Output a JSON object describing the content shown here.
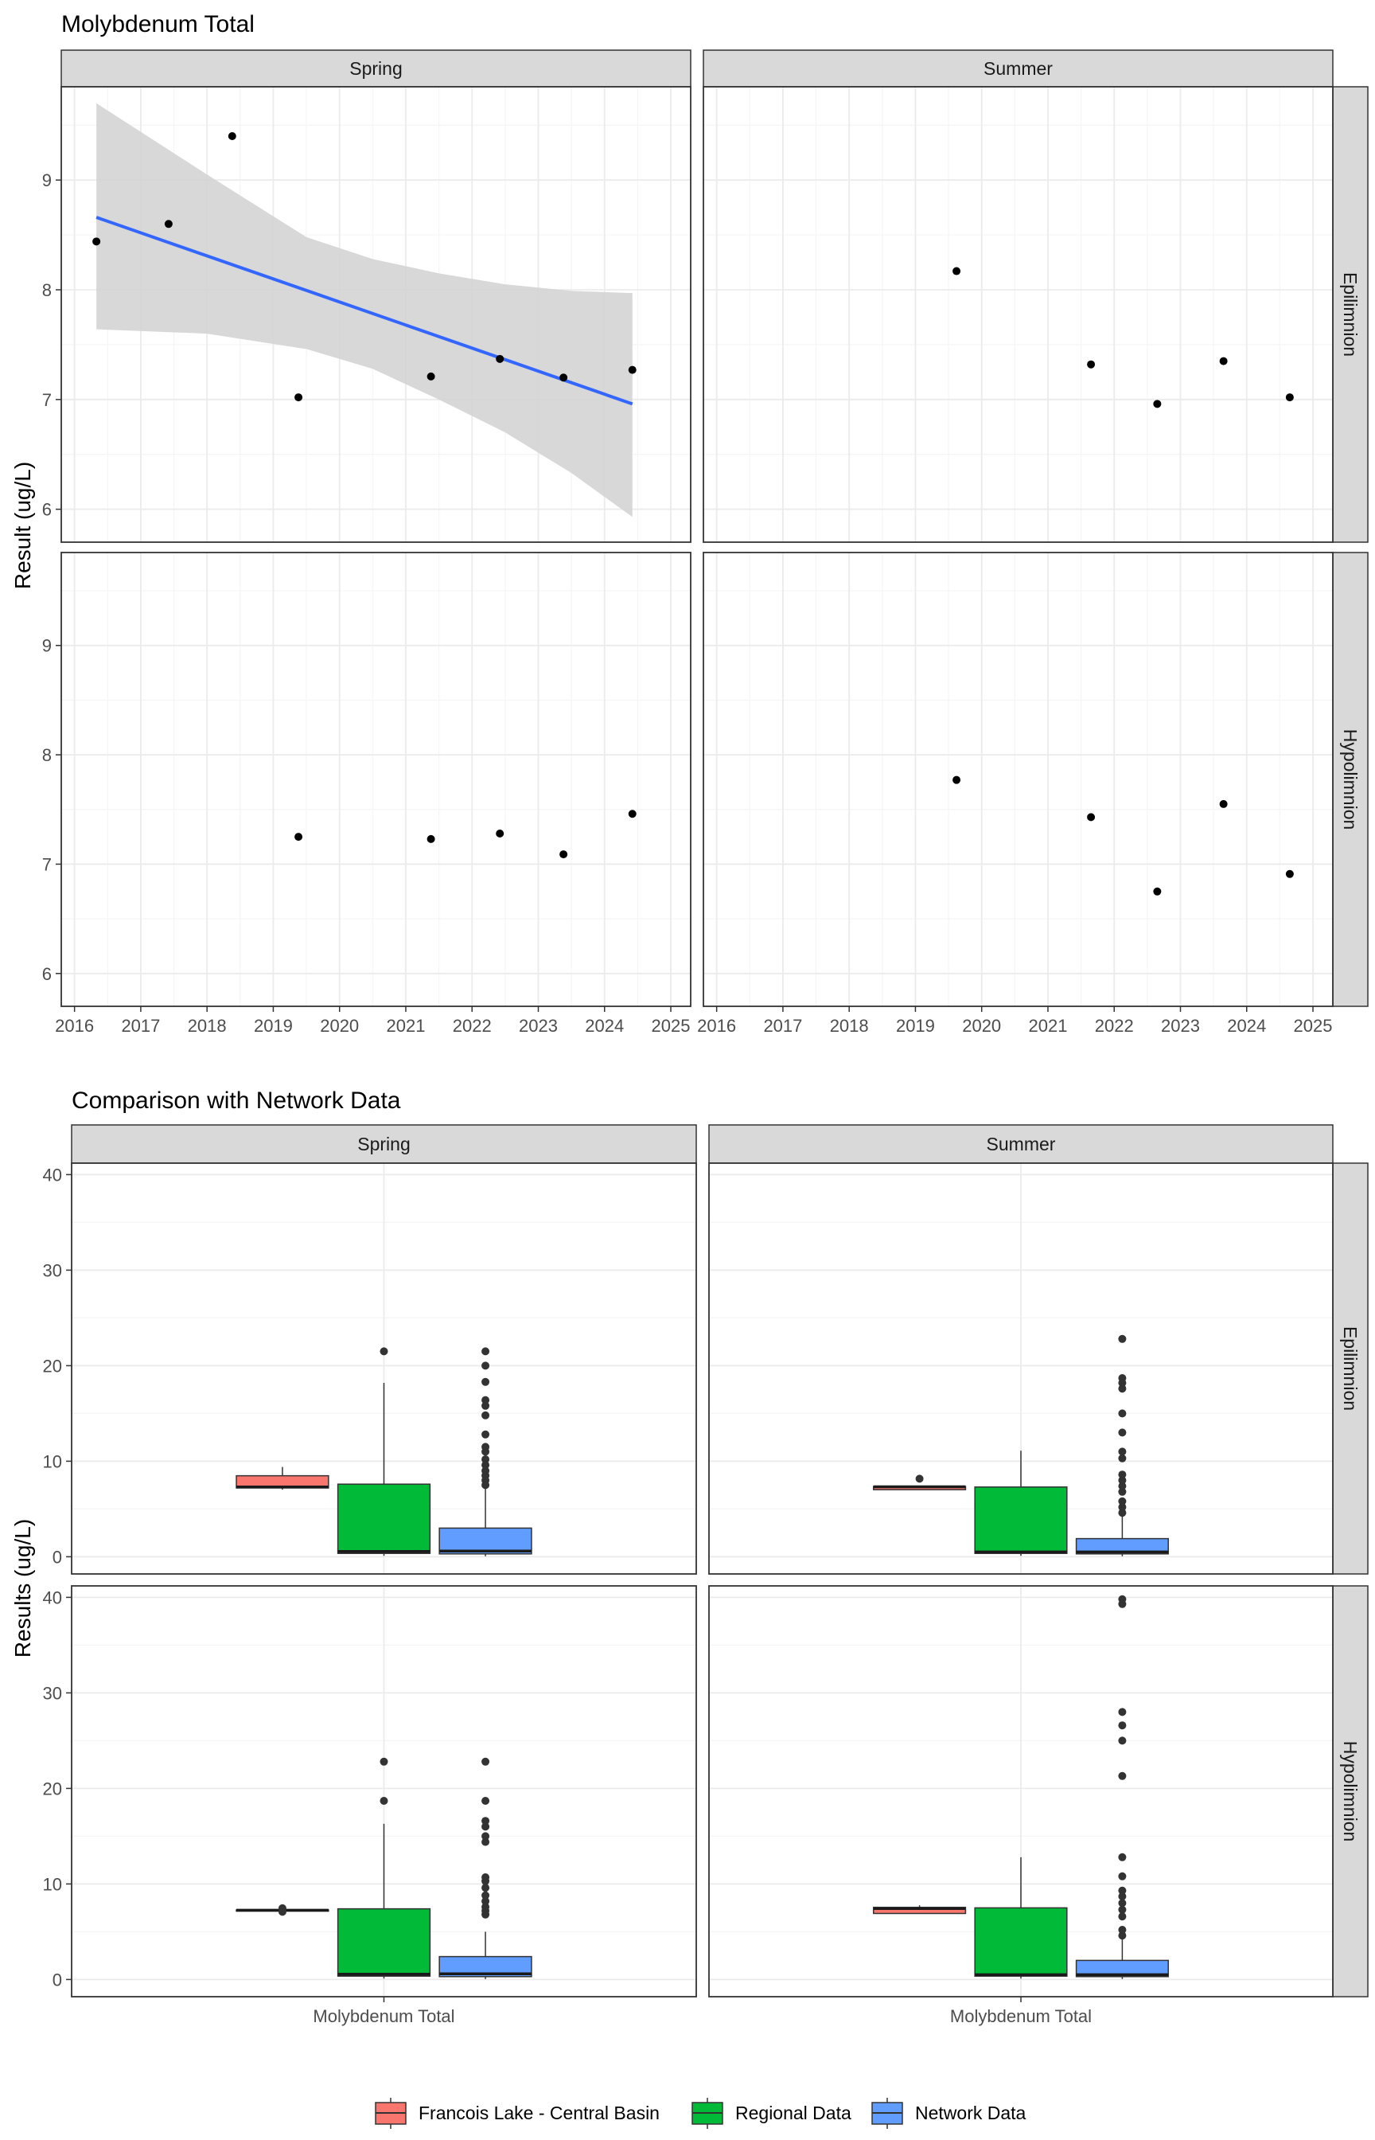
{
  "palette": {
    "panel_border": "#333333",
    "strip_fill": "#d9d9d9",
    "grid_major": "#ebebeb",
    "grid_minor": "#f5f5f5",
    "point": "#000000",
    "trend_line": "#3366ff",
    "ci_band": "#d4d4d4"
  },
  "chart_data": [
    {
      "type": "scatter",
      "title": "Molybdenum Total",
      "xlabel": "",
      "ylabel": "Result (ug/L)",
      "facet_cols": [
        "Spring",
        "Summer"
      ],
      "facet_rows": [
        "Epilimnion",
        "Hypolimnion"
      ],
      "xlim": [
        2015.8,
        2025.3
      ],
      "ylim": [
        5.7,
        9.85
      ],
      "xticks": [
        2016,
        2017,
        2018,
        2019,
        2020,
        2021,
        2022,
        2023,
        2024,
        2025
      ],
      "yticks": [
        6,
        7,
        8,
        9
      ],
      "grid": true,
      "panels": [
        {
          "col": "Spring",
          "row": "Epilimnion",
          "points": [
            {
              "x": 2016.33,
              "y": 8.44
            },
            {
              "x": 2017.42,
              "y": 8.6
            },
            {
              "x": 2018.38,
              "y": 9.4
            },
            {
              "x": 2019.38,
              "y": 7.02
            },
            {
              "x": 2021.38,
              "y": 7.21
            },
            {
              "x": 2022.42,
              "y": 7.37
            },
            {
              "x": 2023.38,
              "y": 7.2
            },
            {
              "x": 2024.42,
              "y": 7.27
            }
          ],
          "trend": {
            "x": [
              2016.33,
              2024.42
            ],
            "y": [
              8.66,
              6.96
            ],
            "ci": [
              {
                "x": 2016.33,
                "lo": 7.64,
                "hi": 9.7
              },
              {
                "x": 2018.0,
                "lo": 7.6,
                "hi": 9.05
              },
              {
                "x": 2019.5,
                "lo": 7.46,
                "hi": 8.48
              },
              {
                "x": 2020.5,
                "lo": 7.28,
                "hi": 8.28
              },
              {
                "x": 2021.5,
                "lo": 7.0,
                "hi": 8.15
              },
              {
                "x": 2022.5,
                "lo": 6.7,
                "hi": 8.05
              },
              {
                "x": 2023.5,
                "lo": 6.33,
                "hi": 7.99
              },
              {
                "x": 2024.42,
                "lo": 5.93,
                "hi": 7.97
              }
            ]
          }
        },
        {
          "col": "Summer",
          "row": "Epilimnion",
          "points": [
            {
              "x": 2019.62,
              "y": 8.17
            },
            {
              "x": 2021.65,
              "y": 7.32
            },
            {
              "x": 2022.65,
              "y": 6.96
            },
            {
              "x": 2023.65,
              "y": 7.35
            },
            {
              "x": 2024.65,
              "y": 7.02
            }
          ]
        },
        {
          "col": "Spring",
          "row": "Hypolimnion",
          "points": [
            {
              "x": 2019.38,
              "y": 7.25
            },
            {
              "x": 2021.38,
              "y": 7.23
            },
            {
              "x": 2022.42,
              "y": 7.28
            },
            {
              "x": 2023.38,
              "y": 7.09
            },
            {
              "x": 2024.42,
              "y": 7.46
            }
          ]
        },
        {
          "col": "Summer",
          "row": "Hypolimnion",
          "points": [
            {
              "x": 2019.62,
              "y": 7.77
            },
            {
              "x": 2021.65,
              "y": 7.43
            },
            {
              "x": 2022.65,
              "y": 6.75
            },
            {
              "x": 2023.65,
              "y": 7.55
            },
            {
              "x": 2024.65,
              "y": 6.91
            }
          ]
        }
      ]
    },
    {
      "type": "box",
      "title": "Comparison with Network Data",
      "xlabel": "",
      "ylabel": "Results (ug/L)",
      "facet_cols": [
        "Spring",
        "Summer"
      ],
      "facet_rows": [
        "Epilimnion",
        "Hypolimnion"
      ],
      "category": "Molybdenum Total",
      "ylim": [
        -1.8,
        41.2
      ],
      "yticks": [
        0,
        10,
        20,
        30,
        40
      ],
      "grid": true,
      "legend": {
        "position": "bottom",
        "entries": [
          {
            "name": "Francois Lake - Central Basin",
            "color": "#f8766d"
          },
          {
            "name": "Regional Data",
            "color": "#00ba38"
          },
          {
            "name": "Network Data",
            "color": "#619cff"
          }
        ]
      },
      "panels": [
        {
          "col": "Spring",
          "row": "Epilimnion",
          "boxes": [
            {
              "group": "Francois Lake - Central Basin",
              "min": 7.02,
              "q1": 7.2,
              "median": 7.3,
              "q3": 8.48,
              "max": 9.4,
              "outliers": []
            },
            {
              "group": "Regional Data",
              "min": 0.1,
              "q1": 0.35,
              "median": 0.55,
              "q3": 7.6,
              "max": 18.2,
              "outliers": [
                21.5
              ]
            },
            {
              "group": "Network Data",
              "min": 0.05,
              "q1": 0.3,
              "median": 0.6,
              "q3": 3.0,
              "max": 7.2,
              "outliers": [
                7.5,
                8.0,
                8.5,
                9.0,
                9.6,
                10.2,
                11.0,
                11.5,
                12.8,
                14.8,
                15.8,
                16.4,
                18.3,
                20.0,
                21.5
              ]
            }
          ]
        },
        {
          "col": "Summer",
          "row": "Epilimnion",
          "boxes": [
            {
              "group": "Francois Lake - Central Basin",
              "min": 7.02,
              "q1": 7.02,
              "median": 7.32,
              "q3": 7.35,
              "max": 7.35,
              "outliers": [
                8.17
              ]
            },
            {
              "group": "Regional Data",
              "min": 0.1,
              "q1": 0.35,
              "median": 0.5,
              "q3": 7.3,
              "max": 11.1,
              "outliers": []
            },
            {
              "group": "Network Data",
              "min": 0.05,
              "q1": 0.3,
              "median": 0.5,
              "q3": 1.9,
              "max": 4.2,
              "outliers": [
                4.6,
                5.2,
                5.8,
                6.8,
                7.4,
                8.0,
                8.6,
                10.3,
                11.0,
                13.0,
                15.0,
                17.6,
                18.2,
                18.7,
                22.8
              ]
            }
          ]
        },
        {
          "col": "Spring",
          "row": "Hypolimnion",
          "boxes": [
            {
              "group": "Francois Lake - Central Basin",
              "min": 7.09,
              "q1": 7.23,
              "median": 7.25,
              "q3": 7.28,
              "max": 7.28,
              "outliers": [
                7.09,
                7.46
              ]
            },
            {
              "group": "Regional Data",
              "min": 0.1,
              "q1": 0.35,
              "median": 0.55,
              "q3": 7.4,
              "max": 16.3,
              "outliers": [
                18.7,
                22.8
              ]
            },
            {
              "group": "Network Data",
              "min": 0.05,
              "q1": 0.3,
              "median": 0.6,
              "q3": 2.4,
              "max": 5.0,
              "outliers": [
                6.8,
                7.2,
                7.6,
                8.2,
                8.8,
                9.6,
                10.3,
                10.7,
                14.4,
                15.0,
                16.0,
                16.6,
                18.7,
                22.8
              ]
            }
          ]
        },
        {
          "col": "Summer",
          "row": "Hypolimnion",
          "boxes": [
            {
              "group": "Francois Lake - Central Basin",
              "min": 6.91,
              "q1": 6.91,
              "median": 7.43,
              "q3": 7.55,
              "max": 7.77,
              "outliers": []
            },
            {
              "group": "Regional Data",
              "min": 0.1,
              "q1": 0.35,
              "median": 0.5,
              "q3": 7.5,
              "max": 12.8,
              "outliers": []
            },
            {
              "group": "Network Data",
              "min": 0.05,
              "q1": 0.3,
              "median": 0.5,
              "q3": 2.0,
              "max": 4.4,
              "outliers": [
                4.6,
                5.2,
                6.6,
                7.3,
                8.0,
                8.7,
                9.3,
                10.8,
                12.8,
                21.3,
                25.0,
                26.6,
                28.0,
                39.3,
                39.8
              ]
            }
          ]
        }
      ]
    }
  ]
}
